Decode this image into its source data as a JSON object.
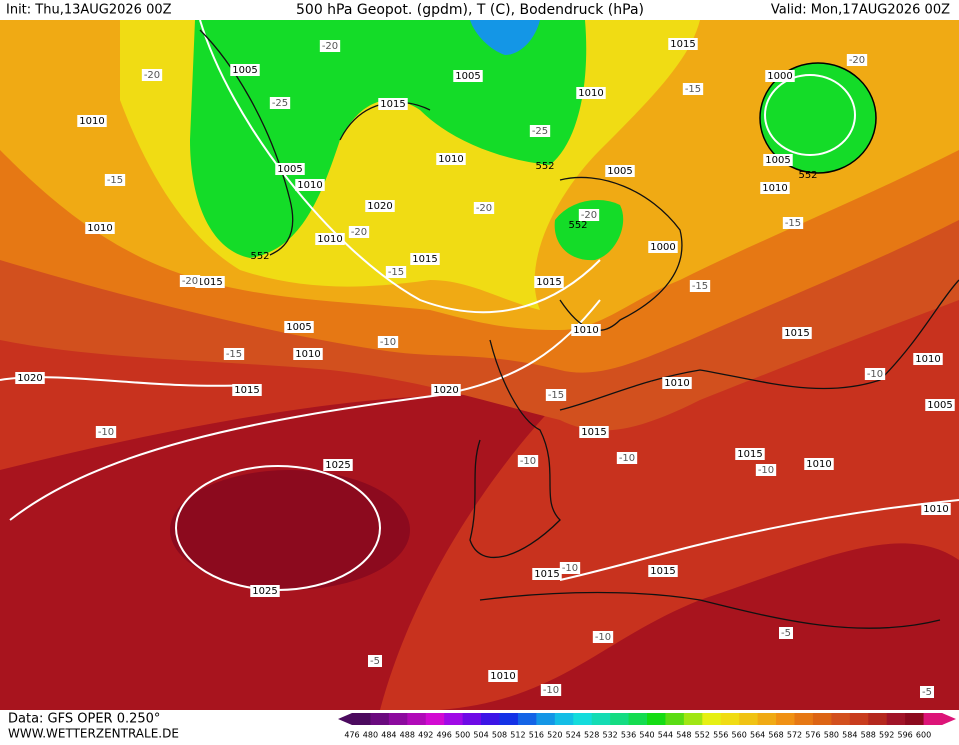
{
  "header": {
    "init": "Init: Thu,13AUG2026 00Z",
    "title": "500 hPa Geopot. (gpdm), T (C), Bodendruck (hPa)",
    "valid": "Valid: Mon,17AUG2026 00Z"
  },
  "footer": {
    "source": "Data: GFS OPER 0.250°",
    "site": "WWW.WETTERZENTRALE.DE"
  },
  "isobar_labels": [
    1005,
    1005,
    1015,
    1010,
    1010,
    1015,
    1010,
    1005,
    1010,
    1005,
    1000,
    1005,
    1010,
    1020,
    1010,
    1010,
    1015,
    1000,
    1015,
    1015,
    1005,
    1010,
    1010,
    1015,
    1010,
    1020,
    1015,
    1020,
    1010,
    1005,
    1015,
    1025,
    1015,
    1010,
    1010,
    1015,
    1015,
    1025,
    1010
  ],
  "temperature_labels": [
    -20,
    -20,
    -25,
    -25,
    -15,
    -20,
    -20,
    -20,
    -15,
    -20,
    -15,
    -15,
    -15,
    -20,
    -10,
    -15,
    -10,
    -15,
    -10,
    -10,
    -10,
    -10,
    -10,
    -10,
    -5,
    -5,
    -10,
    -5
  ],
  "geopotential_labels": [
    552,
    552,
    552,
    552
  ],
  "colorbar": {
    "labels": [
      476,
      480,
      484,
      488,
      492,
      496,
      500,
      504,
      508,
      512,
      516,
      520,
      524,
      528,
      532,
      536,
      540,
      544,
      548,
      552,
      556,
      560,
      564,
      568,
      572,
      576,
      580,
      584,
      588,
      592,
      596,
      600
    ],
    "colors": [
      "#4b0a5e",
      "#6a0a7e",
      "#8c0a9e",
      "#b00ab8",
      "#d20ad2",
      "#a00ae6",
      "#6e0ae6",
      "#3c14e6",
      "#1432e6",
      "#1464e6",
      "#1496e6",
      "#14bee6",
      "#14dcdc",
      "#14dcb4",
      "#14dc82",
      "#14dc50",
      "#14dc14",
      "#5adc14",
      "#a0e614",
      "#e6f014",
      "#f0dc14",
      "#f0c314",
      "#f0aa14",
      "#f09114",
      "#e67814",
      "#dc6414",
      "#d2501e",
      "#c83c1e",
      "#b4281e",
      "#a01428",
      "#8c0a1e",
      "#dc1478"
    ]
  }
}
